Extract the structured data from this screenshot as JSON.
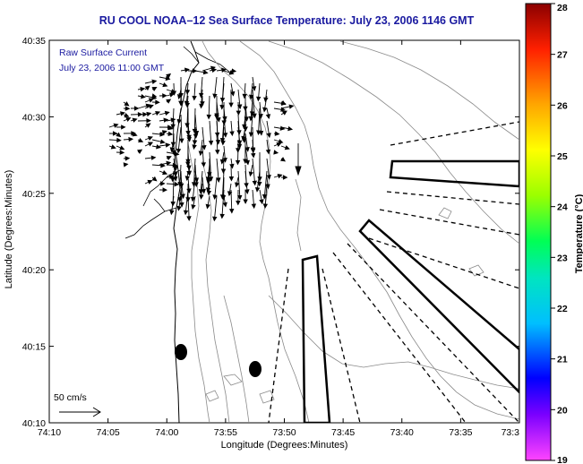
{
  "map": {
    "title": "RU COOL  NOAA–12  Sea Surface Temperature:  July 23, 2006 1146 GMT",
    "xlabel": "Longitude (Degrees:Minutes)",
    "ylabel": "Latitude (Degrees:Minutes)",
    "legend_line1": "Raw Surface Current",
    "legend_line2": "July 23, 2006 11:00 GMT",
    "scale_label": "50 cm/s",
    "x_ticks": [
      "74:10",
      "74:05",
      "74:00",
      "73:55",
      "73:50",
      "73:45",
      "73:40",
      "73:35",
      "73:3"
    ],
    "y_ticks": [
      "40:35",
      "40:30",
      "40:25",
      "40:20",
      "40:15",
      "40:10"
    ]
  },
  "colorbar": {
    "label": "Temperature (°C)",
    "min": 19,
    "max": 28,
    "ticks": [
      "28",
      "27",
      "26",
      "25",
      "24",
      "23",
      "22",
      "21",
      "20",
      "19"
    ],
    "colors": [
      "#ff44ff",
      "#7b00ff",
      "#0000ff",
      "#00bfff",
      "#00e5c0",
      "#00ff55",
      "#9bff00",
      "#ffff00",
      "#ffa500",
      "#ff2000",
      "#8b0000"
    ]
  }
}
